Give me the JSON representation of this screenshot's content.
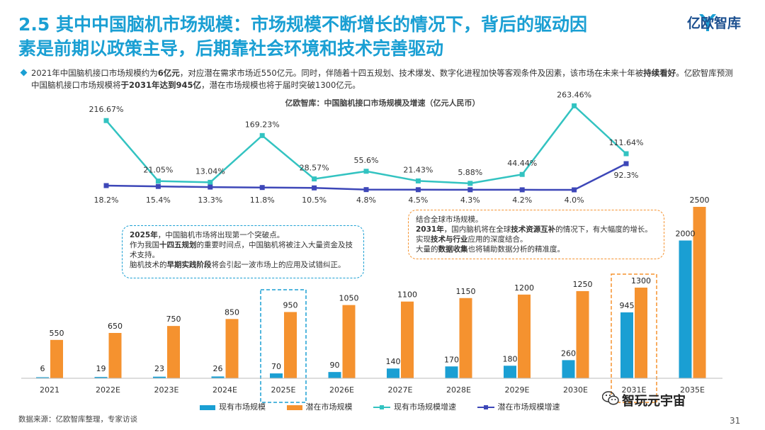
{
  "page": {
    "title_line1": "2.5 其中中国脑机市场规模：市场规模不断增长的情况下，背后的驱动因",
    "title_line2": "素是前期以政策主导，后期靠社会环境和技术完善驱动",
    "logo_text": "亿欧智库",
    "desc_parts": [
      "2021年中国脑机接口市场规模约为",
      "6亿元",
      "，对应潜在需求市场近550亿元。同时，伴随着十四五规划、技术爆发、数字化进程加快等客观条件及因素，该市场在未来十年被",
      "持续看好",
      "。亿欧智库预测中国脑机接口市场规模将",
      "于2031年达到945亿",
      "，潜在市场规模也将于届时突破1300亿元。"
    ],
    "source": "数据来源：亿欧智库整理，专家访谈",
    "page_number": "31",
    "brand": "智玩元宇宙"
  },
  "callouts": {
    "c1": {
      "p1_bold": "2025年",
      "p1_rest": "，中国脑机市场将出现第一个突破点。",
      "p2_a": "作为我国",
      "p2_bold": "十四五规划",
      "p2_b": "的重要时间点，中国脑机将被注入大量资金及技术支持。",
      "p3_a": "脑机技术的",
      "p3_bold": "早期实践阶段",
      "p3_b": "将会引起一波市场上的应用及试错纠正。"
    },
    "c2": {
      "p1": "结合全球市场规模。",
      "p2_bold1": "2031年",
      "p2_a": "，国内脑机将在全球",
      "p2_bold2": "技术资源互补",
      "p2_b": "的情况下，有大幅度的增长。",
      "p3_a": "实现",
      "p3_bold": "技术与行业",
      "p3_b": "应用的深度结合。",
      "p4_a": "大量的",
      "p4_bold": "数据收集",
      "p4_b": "也将辅助数据分析的精准度。"
    }
  },
  "colors": {
    "title": "#1a9fd3",
    "bar_current": "#1a9fd3",
    "bar_potential": "#f5922f",
    "line_current_growth": "#33c3c1",
    "line_potential_growth": "#3d47b8"
  },
  "chart_data": {
    "type": "bar+line",
    "title": "亿欧智库：中国脑机接口市场规模及增速（亿元人民币）",
    "categories": [
      "2021",
      "2022E",
      "2023E",
      "2024E",
      "2025E",
      "2026E",
      "2027E",
      "2028E",
      "2029E",
      "2030E",
      "2031E",
      "2035E"
    ],
    "bar_series": [
      {
        "name": "现有市场规模",
        "values": [
          6,
          19,
          23,
          26,
          70,
          90,
          140,
          170,
          180,
          260,
          945,
          2000
        ]
      },
      {
        "name": "潜在市场规模",
        "values": [
          550,
          650,
          750,
          850,
          950,
          1050,
          1100,
          1150,
          1200,
          1250,
          1300,
          2500
        ]
      }
    ],
    "line_series": [
      {
        "name": "现有市场规模增速",
        "labels": [
          "216.67%",
          "21.05%",
          "13.04%",
          "169.23%",
          "28.57%",
          "55.6%",
          "21.43%",
          "5.88%",
          "44.44%",
          "263.46%",
          "111.64%"
        ],
        "values": [
          216.67,
          21.05,
          13.04,
          169.23,
          28.57,
          55.6,
          21.43,
          5.88,
          44.44,
          263.46,
          111.64
        ]
      },
      {
        "name": "潜在市场规模增速",
        "labels": [
          "18.2%",
          "15.4%",
          "13.3%",
          "11.8%",
          "10.5%",
          "4.8%",
          "4.5%",
          "4.3%",
          "4.2%",
          "4.0%",
          "92.3%"
        ],
        "values": [
          18.2,
          15.4,
          13.3,
          11.8,
          10.5,
          4.8,
          4.5,
          4.3,
          4.2,
          4.0,
          92.3
        ]
      }
    ],
    "legend": [
      "现有市场规模",
      "潜在市场规模",
      "现有市场规模增速",
      "潜在市场规模增速"
    ],
    "bar_ylim": [
      0,
      2500
    ],
    "line_ylim": [
      0,
      280
    ]
  }
}
